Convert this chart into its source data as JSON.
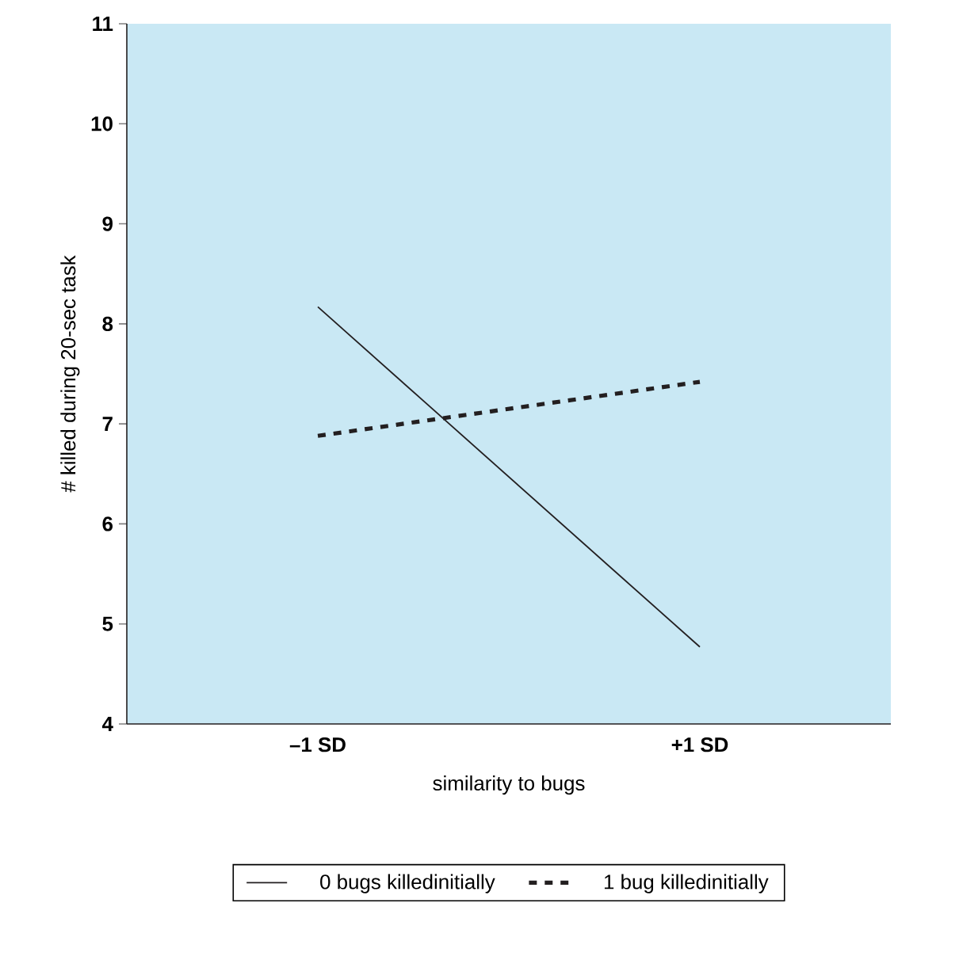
{
  "chart_data": {
    "type": "line",
    "xlabel": "similarity to bugs",
    "ylabel": "# killed during 20-sec task",
    "categories": [
      "–1 SD",
      "+1 SD"
    ],
    "series": [
      {
        "name": "0 bugs killedinitially",
        "color": "#231f20",
        "values": [
          8.17,
          4.77
        ],
        "line_style": "solid"
      },
      {
        "name": "1 bug killedinitially",
        "color": "#231f20",
        "values": [
          6.88,
          7.42
        ],
        "line_style": "dashed"
      }
    ],
    "ylim": [
      4,
      11
    ],
    "yticks": [
      4,
      5,
      6,
      7,
      8,
      9,
      10,
      11
    ],
    "legend": "bottom",
    "grid": false
  }
}
